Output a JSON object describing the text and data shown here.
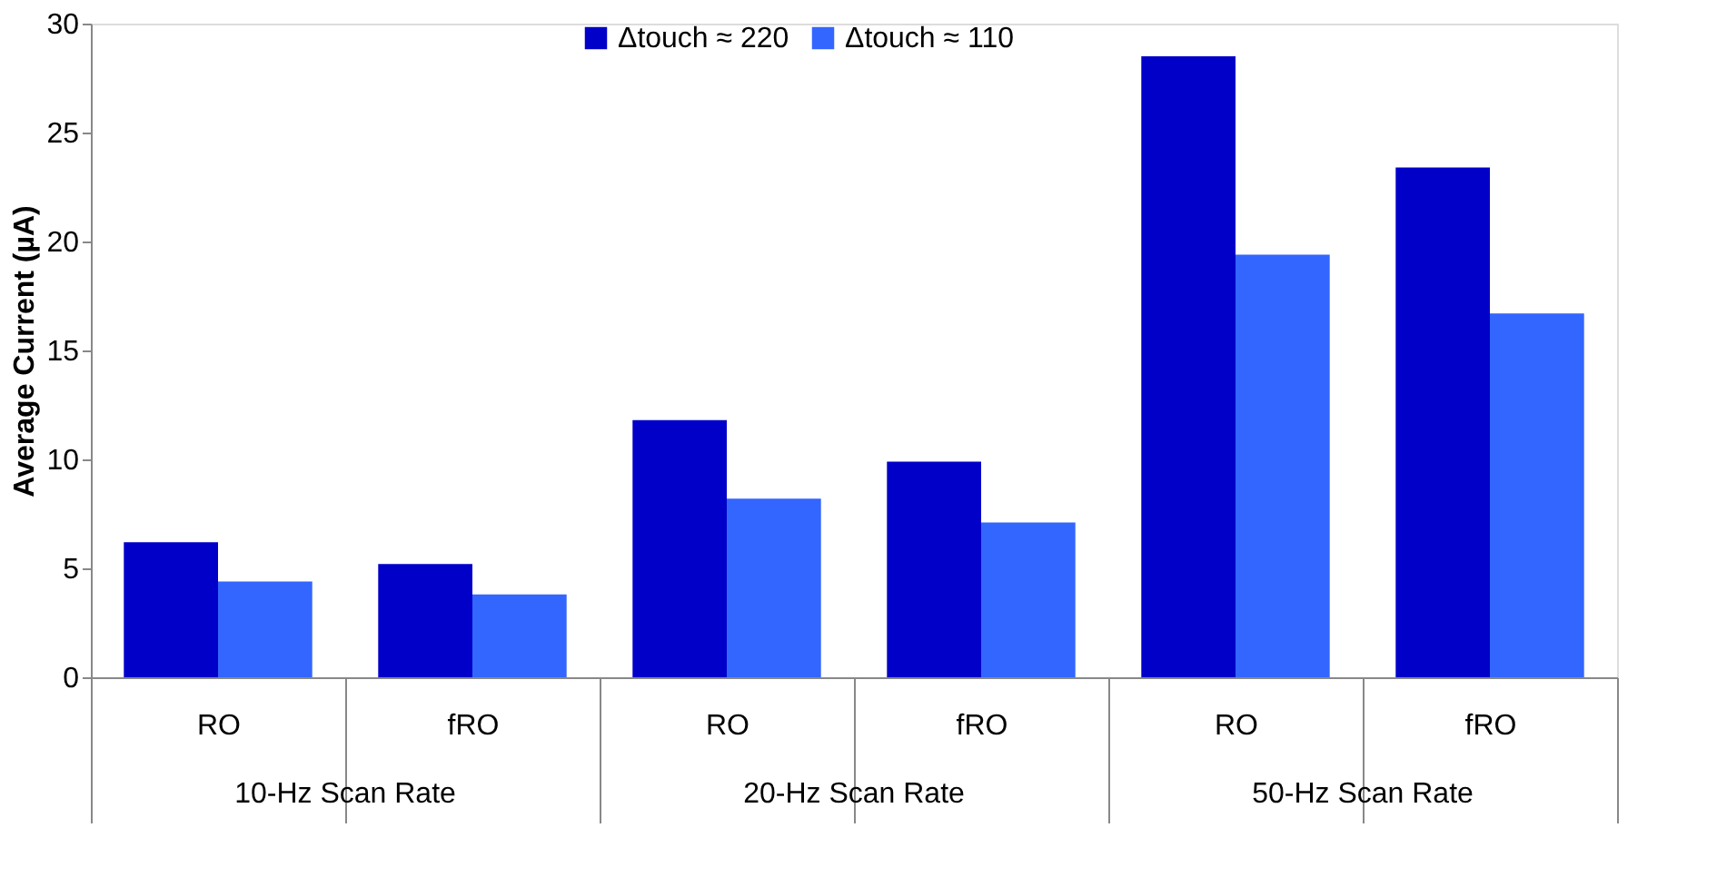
{
  "chart_data": {
    "type": "bar",
    "ylabel": "Average Current (µA)",
    "categories": [
      "RO",
      "fRO",
      "RO",
      "fRO",
      "RO",
      "fRO"
    ],
    "series": [
      {
        "name": "Δtouch ≈ 220",
        "color": "#0000c8",
        "values": [
          6.2,
          5.2,
          11.8,
          9.9,
          28.5,
          23.4
        ]
      },
      {
        "name": "Δtouch ≈ 110",
        "color": "#3366ff",
        "values": [
          4.4,
          3.8,
          8.2,
          7.1,
          19.4,
          16.7
        ]
      }
    ],
    "annotations": [
      "10-Hz Scan Rate",
      "20-Hz Scan Rate",
      "50-Hz Scan Rate"
    ],
    "ylim": [
      0,
      30
    ],
    "yticks": [
      0,
      5,
      10,
      15,
      20,
      25,
      30
    ],
    "grid": false,
    "legend": "top"
  }
}
